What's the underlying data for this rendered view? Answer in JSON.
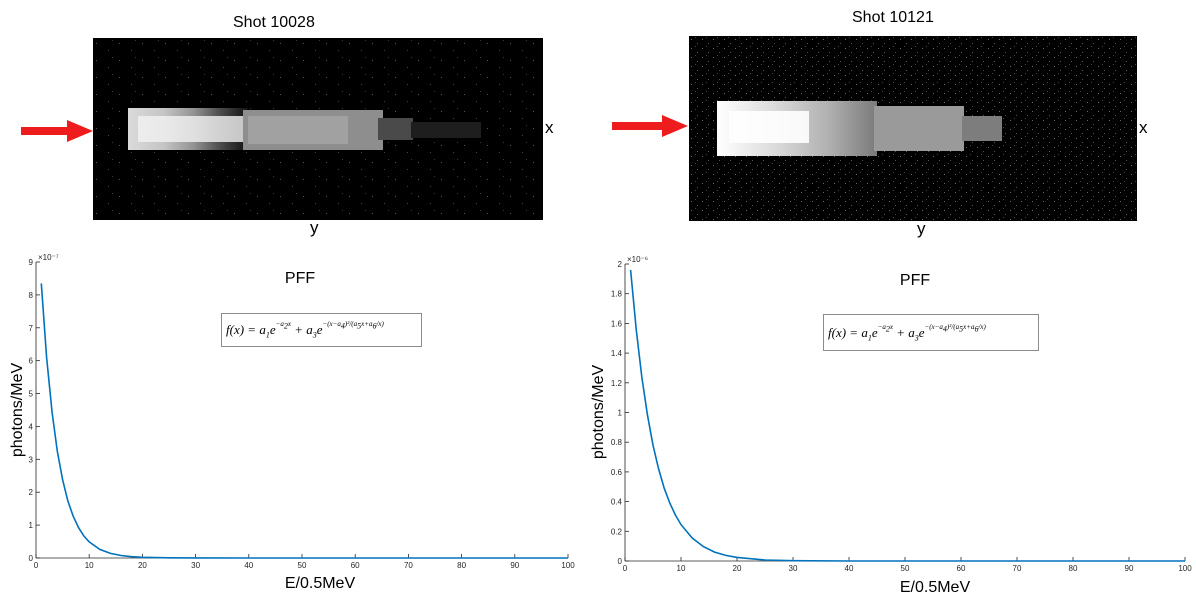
{
  "panels": [
    {
      "title": "Shot 10028",
      "x_label": "x",
      "y_label": "y",
      "has_marker_arrow": true,
      "marker_color": "#ee1c1c"
    },
    {
      "title": "Shot 10121",
      "x_label": "x",
      "y_label": "y",
      "has_marker_arrow": true,
      "marker_color": "#ee1c1c"
    }
  ],
  "formula": {
    "lhs": "f(x) = ",
    "text": "a1e^(-a2x) + a3e^(-(x-a4)^2/(a5x+a6/x))"
  },
  "colors": {
    "line": "#0072bd",
    "axis": "#262626",
    "background": "#ffffff",
    "detector_bg": "#000000"
  },
  "chart_data": [
    {
      "type": "line",
      "title": "PFF",
      "xlabel": "E/0.5MeV",
      "ylabel": "photons/MeV",
      "exponent_label": "×10⁻⁷",
      "xlim": [
        0,
        100
      ],
      "ylim": [
        0,
        9
      ],
      "xticks": [
        "0",
        "10",
        "20",
        "30",
        "40",
        "50",
        "60",
        "70",
        "80",
        "90",
        "100"
      ],
      "yticks": [
        "0",
        "1",
        "2",
        "3",
        "4",
        "5",
        "6",
        "7",
        "8",
        "9"
      ],
      "grid": false,
      "series": [
        {
          "x": [
            1,
            2,
            3,
            4,
            5,
            6,
            7,
            8,
            9,
            10,
            12,
            14,
            16,
            18,
            20,
            25,
            30,
            40,
            50,
            60,
            70,
            80,
            90,
            100
          ],
          "values": [
            8.35,
            6.1,
            4.45,
            3.25,
            2.38,
            1.73,
            1.27,
            0.92,
            0.67,
            0.49,
            0.26,
            0.14,
            0.075,
            0.04,
            0.02,
            0.005,
            0.002,
            0,
            0,
            0,
            0,
            0,
            0,
            0
          ]
        }
      ]
    },
    {
      "type": "line",
      "title": "PFF",
      "xlabel": "E/0.5MeV",
      "ylabel": "photons/MeV",
      "exponent_label": "×10⁻⁶",
      "xlim": [
        0,
        100
      ],
      "ylim": [
        0,
        2
      ],
      "xticks": [
        "0",
        "10",
        "20",
        "30",
        "40",
        "50",
        "60",
        "70",
        "80",
        "90",
        "100"
      ],
      "yticks": [
        "0",
        "0.2",
        "0.4",
        "0.6",
        "0.8",
        "1",
        "1.2",
        "1.4",
        "1.6",
        "1.8",
        "2"
      ],
      "grid": false,
      "series": [
        {
          "x": [
            1,
            2,
            3,
            4,
            5,
            6,
            7,
            8,
            9,
            10,
            12,
            14,
            16,
            18,
            20,
            25,
            30,
            40,
            50,
            60,
            70,
            80,
            90,
            100
          ],
          "values": [
            1.96,
            1.56,
            1.24,
            0.985,
            0.78,
            0.62,
            0.49,
            0.39,
            0.31,
            0.245,
            0.155,
            0.097,
            0.06,
            0.038,
            0.024,
            0.007,
            0.002,
            0,
            0,
            0,
            0,
            0,
            0,
            0
          ]
        }
      ]
    }
  ]
}
